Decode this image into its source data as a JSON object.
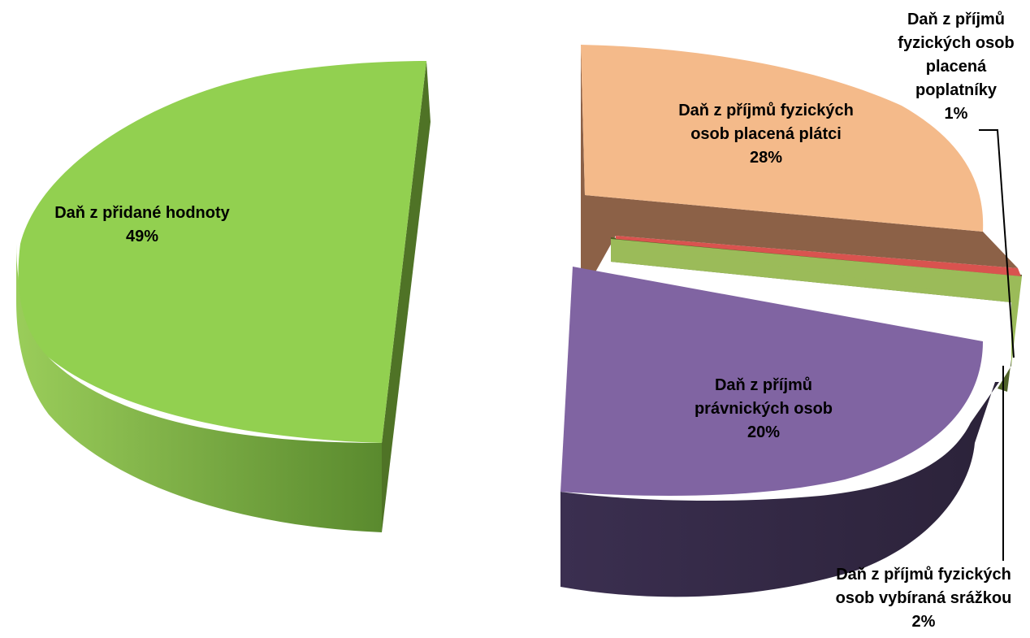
{
  "chart_data": {
    "type": "pie",
    "title": "",
    "series": [
      {
        "values": [
          49,
          28,
          1,
          2,
          20
        ]
      }
    ],
    "categories": [
      "Daň z přidané hodnoty",
      "Daň z příjmů fyzických osob placená plátci",
      "Daň z příjmů fyzických osob placená poplatníky",
      "Daň z příjmů fyzických osob vybíraná srážkou",
      "Daň z příjmů právnických osob"
    ],
    "slices": [
      {
        "key": "dph",
        "label_lines": [
          "Daň z přidané hodnoty"
        ],
        "percent_label": "49%",
        "value": 49,
        "color": "#92D050",
        "side_color": "#6E9E38",
        "dark_color": "#4F7326"
      },
      {
        "key": "dpfo-platci",
        "label_lines": [
          "Daň z příjmů fyzických",
          "osob placená plátci"
        ],
        "percent_label": "28%",
        "value": 28,
        "color": "#F4BA8A",
        "side_color": "#8C6147",
        "dark_color": "#6E4D3C"
      },
      {
        "key": "dpfo-poplatnici",
        "label_lines": [
          "Daň z příjmů",
          "fyzických osob",
          "placená",
          "poplatníky"
        ],
        "percent_label": "1%",
        "value": 1,
        "color": "#D9534F",
        "side_color": "#9E2F2C",
        "dark_color": "#7A2220"
      },
      {
        "key": "dpfo-srazkou",
        "label_lines": [
          "Daň z příjmů fyzických",
          "osob vybíraná srážkou"
        ],
        "percent_label": "2%",
        "value": 2,
        "color": "#9BBB59",
        "side_color": "#4F6228",
        "dark_color": "#3D4B1F"
      },
      {
        "key": "dppo",
        "label_lines": [
          "Daň z příjmů",
          "právnických osob"
        ],
        "percent_label": "20%",
        "value": 20,
        "color": "#8064A2",
        "side_color": "#4A3A5F",
        "dark_color": "#2E2540"
      }
    ]
  }
}
